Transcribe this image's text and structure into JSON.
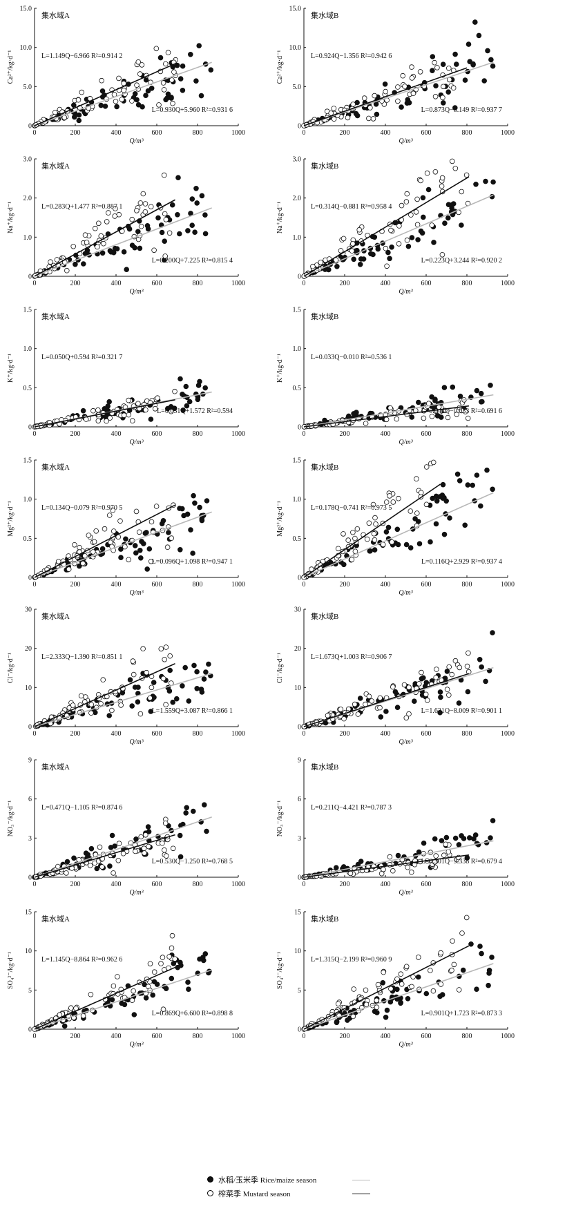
{
  "chart_data": [
    {
      "type": "scatter",
      "region": "集水域A",
      "ylabel": "Ca²⁺/kg·d⁻¹",
      "xlabel": "Q/m³",
      "xlim": [
        0,
        1000
      ],
      "ylim": [
        0,
        15
      ],
      "xticks": [
        0,
        200,
        400,
        600,
        800,
        1000
      ],
      "yticks": [
        0,
        5.0,
        10.0,
        15.0
      ],
      "ytick_labels": [
        "0",
        "5.0",
        "10.0",
        "15.0"
      ],
      "lines": [
        {
          "season": "mustard",
          "slope": 0.01149,
          "intercept": -0.006966,
          "xmax": 700,
          "label": "L=1.149Q−6.966 R²=0.914 2"
        },
        {
          "season": "rice",
          "slope": 0.0093,
          "intercept": 0.00596,
          "xmax": 870,
          "label": "L=0.930Q+5.960 R²=0.931 6"
        }
      ]
    },
    {
      "type": "scatter",
      "region": "集水域B",
      "ylabel": "Ca²⁺/kg·d⁻¹",
      "xlabel": "Q/m³",
      "xlim": [
        0,
        1000
      ],
      "ylim": [
        0,
        15
      ],
      "xticks": [
        0,
        200,
        400,
        600,
        800,
        1000
      ],
      "yticks": [
        0,
        5.0,
        10.0,
        15.0
      ],
      "ytick_labels": [
        "0",
        "5.0",
        "10.0",
        "15.0"
      ],
      "lines": [
        {
          "season": "mustard",
          "slope": 0.00924,
          "intercept": -0.001356,
          "xmax": 800,
          "label": "L=0.924Q−1.356 R²=0.942 6"
        },
        {
          "season": "rice",
          "slope": 0.00873,
          "intercept": -0.008149,
          "xmax": 930,
          "label": "L=0.873Q−8.149 R²=0.937 7"
        }
      ]
    },
    {
      "type": "scatter",
      "region": "集水域A",
      "ylabel": "Na⁺/kg·d⁻¹",
      "xlabel": "Q/m³",
      "xlim": [
        0,
        1000
      ],
      "ylim": [
        0,
        3
      ],
      "xticks": [
        0,
        200,
        400,
        600,
        800,
        1000
      ],
      "yticks": [
        0,
        1.0,
        2.0,
        3.0
      ],
      "ytick_labels": [
        "0",
        "1.0",
        "2.0",
        "3.0"
      ],
      "lines": [
        {
          "season": "mustard",
          "slope": 0.00283,
          "intercept": 0.001477,
          "xmax": 690,
          "label": "L=0.283Q+1.477 R²=0.887 1"
        },
        {
          "season": "rice",
          "slope": 0.002,
          "intercept": 0.007225,
          "xmax": 870,
          "label": "L=0.200Q+7.225 R²=0.815 4"
        }
      ]
    },
    {
      "type": "scatter",
      "region": "集水域B",
      "ylabel": "Na⁺/kg·d⁻¹",
      "xlabel": "Q/m³",
      "xlim": [
        0,
        1000
      ],
      "ylim": [
        0,
        3
      ],
      "xticks": [
        0,
        200,
        400,
        600,
        800,
        1000
      ],
      "yticks": [
        0,
        1.0,
        2.0,
        3.0
      ],
      "ytick_labels": [
        "0",
        "1.0",
        "2.0",
        "3.0"
      ],
      "lines": [
        {
          "season": "mustard",
          "slope": 0.00314,
          "intercept": -0.000881,
          "xmax": 810,
          "label": "L=0.314Q−0.881 R²=0.958 4"
        },
        {
          "season": "rice",
          "slope": 0.00223,
          "intercept": 0.003244,
          "xmax": 930,
          "label": "L=0.223Q+3.244 R²=0.920 2"
        }
      ]
    },
    {
      "type": "scatter",
      "region": "集水域A",
      "ylabel": "K⁺/kg·d⁻¹",
      "xlabel": "Q/m³",
      "xlim": [
        0,
        1000
      ],
      "ylim": [
        0,
        1.5
      ],
      "xticks": [
        0,
        200,
        400,
        600,
        800,
        1000
      ],
      "yticks": [
        0,
        0.5,
        1.0,
        1.5
      ],
      "ytick_labels": [
        "0",
        "0.5",
        "1.0",
        "1.5"
      ],
      "lines": [
        {
          "season": "mustard",
          "slope": 0.0005,
          "intercept": 0.000594,
          "xmax": 690,
          "label": "L=0.050Q+0.594 R²=0.321 7"
        },
        {
          "season": "rice",
          "slope": 0.00051,
          "intercept": 0.001572,
          "xmax": 870,
          "label": "L=0.051Q+1.572 R²=0.594"
        }
      ]
    },
    {
      "type": "scatter",
      "region": "集水域B",
      "ylabel": "K⁺/kg·d⁻¹",
      "xlabel": "Q/m³",
      "xlim": [
        0,
        1000
      ],
      "ylim": [
        0,
        1.5
      ],
      "xticks": [
        0,
        200,
        400,
        600,
        800,
        1000
      ],
      "yticks": [
        0,
        0.5,
        1.0,
        1.5
      ],
      "ytick_labels": [
        "0",
        "0.5",
        "1.0",
        "1.5"
      ],
      "lines": [
        {
          "season": "mustard",
          "slope": 0.00033,
          "intercept": -1e-05,
          "xmax": 810,
          "label": "L=0.033Q−0.010 R²=0.536 1"
        },
        {
          "season": "rice",
          "slope": 0.00044,
          "intercept": -3.3e-05,
          "xmax": 930,
          "label": "L=0.044Q−0.033 R²=0.691 6"
        }
      ]
    },
    {
      "type": "scatter",
      "region": "集水域A",
      "ylabel": "Mg²⁺/kg·d⁻¹",
      "xlabel": "Q/m³",
      "xlim": [
        0,
        1000
      ],
      "ylim": [
        0,
        1.5
      ],
      "xticks": [
        0,
        200,
        400,
        600,
        800,
        1000
      ],
      "yticks": [
        0,
        0.5,
        1.0,
        1.5
      ],
      "ytick_labels": [
        "0",
        "0.5",
        "1.0",
        "1.5"
      ],
      "lines": [
        {
          "season": "mustard",
          "slope": 0.00134,
          "intercept": -7.9e-05,
          "xmax": 690,
          "label": "L=0.134Q−0.079 R²=0.970 5"
        },
        {
          "season": "rice",
          "slope": 0.00096,
          "intercept": 0.001098,
          "xmax": 870,
          "label": "L=0.096Q+1.098 R²=0.947 1"
        }
      ]
    },
    {
      "type": "scatter",
      "region": "集水域B",
      "ylabel": "Mg²⁺/kg·d⁻¹",
      "xlabel": "Q/m³",
      "xlim": [
        0,
        1000
      ],
      "ylim": [
        0,
        1.5
      ],
      "xticks": [
        0,
        200,
        400,
        600,
        800,
        1000
      ],
      "yticks": [
        0,
        0.5,
        1.0,
        1.5
      ],
      "ytick_labels": [
        "0",
        "0.5",
        "1.0",
        "1.5"
      ],
      "lines": [
        {
          "season": "mustard",
          "slope": 0.00178,
          "intercept": -0.000741,
          "xmax": 670,
          "label": "L=0.178Q−0.741 R²=0.973 5"
        },
        {
          "season": "rice",
          "slope": 0.00116,
          "intercept": 0.002929,
          "xmax": 930,
          "label": "L=0.116Q+2.929 R²=0.937 4"
        }
      ]
    },
    {
      "type": "scatter",
      "region": "集水域A",
      "ylabel": "Cl⁻/kg·d⁻¹",
      "xlabel": "Q/m³",
      "xlim": [
        0,
        1000
      ],
      "ylim": [
        0,
        30
      ],
      "xticks": [
        0,
        200,
        400,
        600,
        800,
        1000
      ],
      "yticks": [
        0,
        10,
        20,
        30
      ],
      "ytick_labels": [
        "0",
        "10",
        "20",
        "30"
      ],
      "lines": [
        {
          "season": "mustard",
          "slope": 0.02333,
          "intercept": -0.00139,
          "xmax": 690,
          "label": "L=2.333Q−1.390 R²=0.851 1"
        },
        {
          "season": "rice",
          "slope": 0.01559,
          "intercept": 0.003087,
          "xmax": 870,
          "label": "L=1.559Q+3.087 R²=0.866 1"
        }
      ]
    },
    {
      "type": "scatter",
      "region": "集水域B",
      "ylabel": "Cl⁻/kg·d⁻¹",
      "xlabel": "Q/m³",
      "xlim": [
        0,
        1000
      ],
      "ylim": [
        0,
        30
      ],
      "xticks": [
        0,
        200,
        400,
        600,
        800,
        1000
      ],
      "yticks": [
        0,
        10,
        20,
        30
      ],
      "ytick_labels": [
        "0",
        "10",
        "20",
        "30"
      ],
      "lines": [
        {
          "season": "mustard",
          "slope": 0.01673,
          "intercept": 0.001003,
          "xmax": 810,
          "label": "L=1.673Q+1.003 R²=0.906 7"
        },
        {
          "season": "rice",
          "slope": 0.01621,
          "intercept": -0.008009,
          "xmax": 930,
          "label": "L=1.621Q−8.009 R²=0.901 1"
        }
      ]
    },
    {
      "type": "scatter",
      "region": "集水域A",
      "ylabel": "NO₃⁻/kg·d⁻¹",
      "xlabel": "Q/m³",
      "xlim": [
        0,
        1000
      ],
      "ylim": [
        0,
        9
      ],
      "xticks": [
        0,
        200,
        400,
        600,
        800,
        1000
      ],
      "yticks": [
        0,
        3,
        6,
        9
      ],
      "ytick_labels": [
        "0",
        "3",
        "6",
        "9"
      ],
      "lines": [
        {
          "season": "mustard",
          "slope": 0.00471,
          "intercept": -0.001105,
          "xmax": 690,
          "label": "L=0.471Q−1.105 R²=0.874 6"
        },
        {
          "season": "rice",
          "slope": 0.0053,
          "intercept": -0.00125,
          "xmax": 870,
          "label": "L=0.530Q−1.250 R²=0.768 5"
        }
      ]
    },
    {
      "type": "scatter",
      "region": "集水域B",
      "ylabel": "NO₃⁻/kg·d⁻¹",
      "xlabel": "Q/m³",
      "xlim": [
        0,
        1000
      ],
      "ylim": [
        0,
        9
      ],
      "xticks": [
        0,
        200,
        400,
        600,
        800,
        1000
      ],
      "yticks": [
        0,
        3,
        6,
        9
      ],
      "ytick_labels": [
        "0",
        "3",
        "6",
        "9"
      ],
      "lines": [
        {
          "season": "mustard",
          "slope": 0.00211,
          "intercept": -0.004421,
          "xmax": 810,
          "label": "L=0.211Q−4.421 R²=0.787 3"
        },
        {
          "season": "rice",
          "slope": 0.00301,
          "intercept": -0.009338,
          "xmax": 930,
          "label": "L=0.301Q−9.338 R²=0.679 4"
        }
      ]
    },
    {
      "type": "scatter",
      "region": "集水域A",
      "ylabel": "SO₄²⁻/kg·d⁻¹",
      "xlabel": "Q/m³",
      "xlim": [
        0,
        1000
      ],
      "ylim": [
        0,
        15
      ],
      "xticks": [
        0,
        200,
        400,
        600,
        800,
        1000
      ],
      "yticks": [
        0,
        5,
        10,
        15
      ],
      "ytick_labels": [
        "0",
        "5",
        "10",
        "15"
      ],
      "lines": [
        {
          "season": "mustard",
          "slope": 0.01145,
          "intercept": -0.008864,
          "xmax": 690,
          "label": "L=1.145Q−8.864 R²=0.962 6"
        },
        {
          "season": "rice",
          "slope": 0.00869,
          "intercept": 0.0066,
          "xmax": 870,
          "label": "L=0.869Q+6.600 R²=0.898 8"
        }
      ]
    },
    {
      "type": "scatter",
      "region": "集水域B",
      "ylabel": "SO₄²⁻/kg·d⁻¹",
      "xlabel": "Q/m³",
      "xlim": [
        0,
        1000
      ],
      "ylim": [
        0,
        15
      ],
      "xticks": [
        0,
        200,
        400,
        600,
        800,
        1000
      ],
      "yticks": [
        0,
        5,
        10,
        15
      ],
      "ytick_labels": [
        "0",
        "5",
        "10",
        "15"
      ],
      "lines": [
        {
          "season": "mustard",
          "slope": 0.01315,
          "intercept": -0.002199,
          "xmax": 810,
          "label": "L=1.315Q−2.199 R²=0.960 9"
        },
        {
          "season": "rice",
          "slope": 0.00901,
          "intercept": 0.001723,
          "xmax": 930,
          "label": "L=0.901Q+1.723 R²=0.873 3"
        }
      ]
    }
  ],
  "legend": {
    "rice_label": "水稻/玉米季 Rice/maize season",
    "mustard_label": "榨菜季 Mustard season"
  },
  "colors": {
    "rice_line": "#b8b8b8",
    "mustard_line": "#111111",
    "points": "#111111"
  }
}
